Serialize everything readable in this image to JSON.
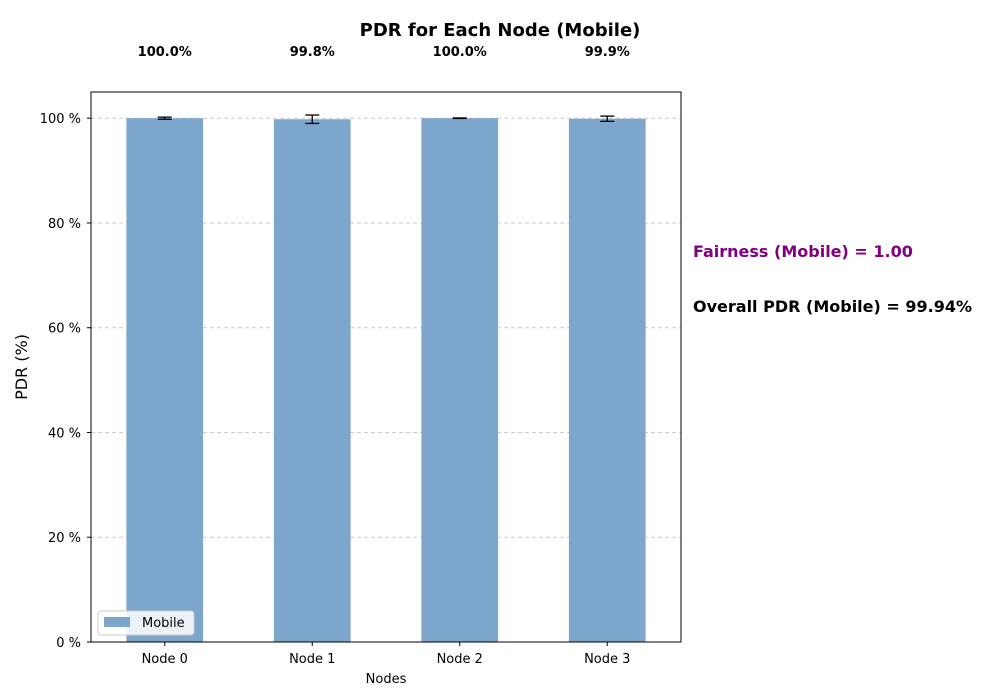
{
  "chart_data": {
    "type": "bar",
    "title": "PDR for Each Node (Mobile)",
    "xlabel": "Nodes",
    "ylabel": "PDR (%)",
    "categories": [
      "Node 0",
      "Node 1",
      "Node 2",
      "Node 3"
    ],
    "series": [
      {
        "name": "Mobile",
        "values": [
          100.0,
          99.8,
          100.0,
          99.9
        ],
        "errors": [
          0.2,
          0.8,
          0.05,
          0.5
        ],
        "color": "#7ca6cb"
      }
    ],
    "value_labels": [
      "100.0%",
      "99.8%",
      "100.0%",
      "99.9%"
    ],
    "ylim": [
      0,
      105
    ],
    "yticks": [
      0,
      20,
      40,
      60,
      80,
      100
    ],
    "ytick_labels": [
      "0 %",
      "20 %",
      "40 %",
      "60 %",
      "80 %",
      "100 %"
    ],
    "grid": true,
    "legend": {
      "position": "lower-left",
      "entries": [
        "Mobile"
      ]
    },
    "annotations": [
      {
        "text": "Fairness (Mobile) = 1.00",
        "color": "#800080"
      },
      {
        "text": "Overall PDR (Mobile) = 99.94%",
        "color": "#000000"
      }
    ]
  }
}
